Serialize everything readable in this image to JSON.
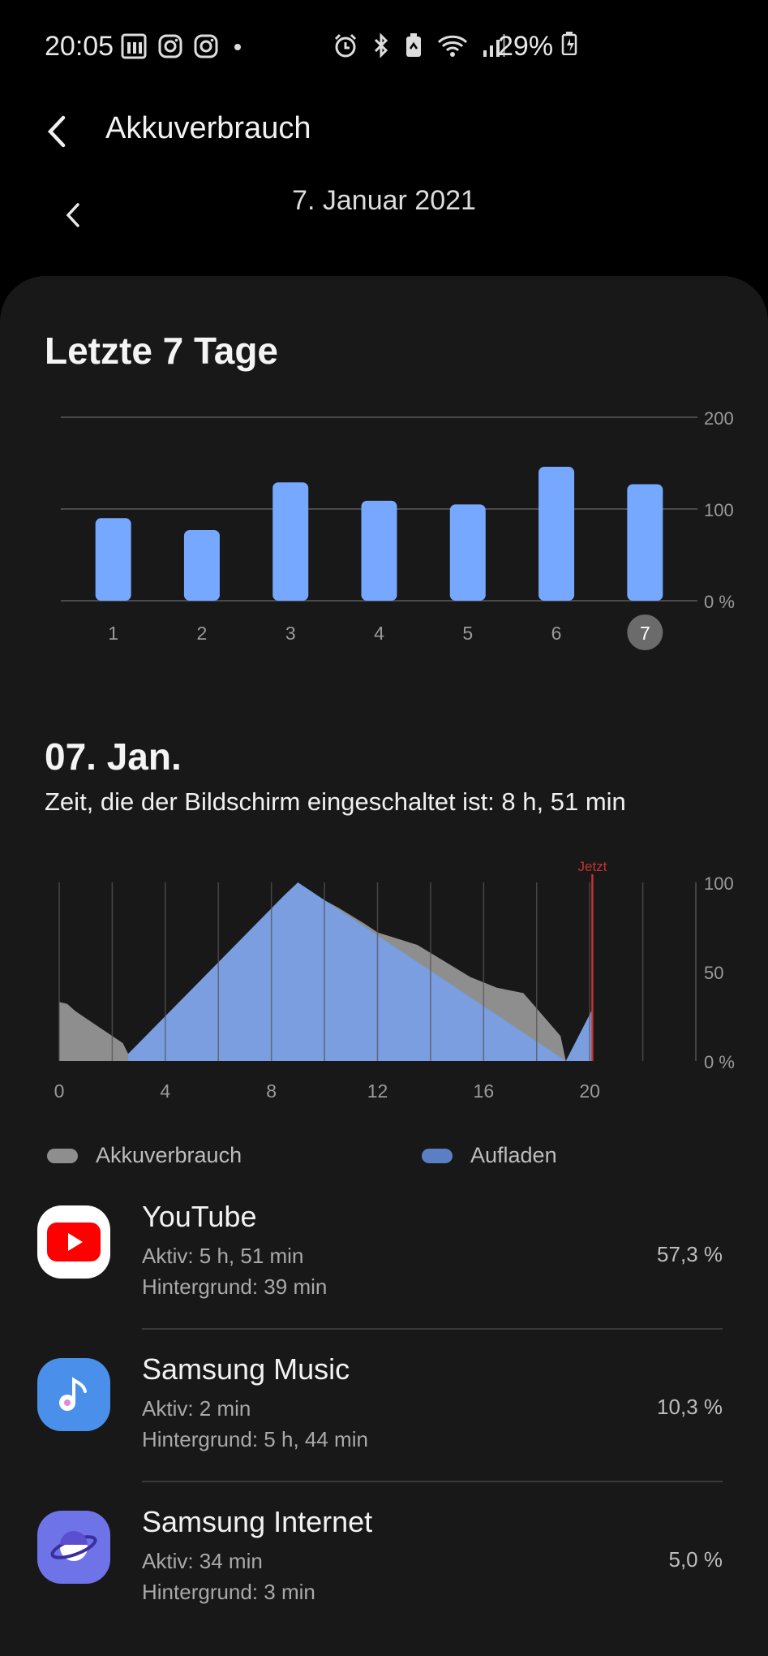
{
  "status_bar": {
    "time": "20:05",
    "battery_percent": "29%",
    "left_icons": [
      "sport-app-icon",
      "instagram-icon",
      "instagram-icon",
      "dot-icon"
    ],
    "right_icons": [
      "alarm-icon",
      "bluetooth-icon",
      "battery-saver-icon",
      "wifi-icon",
      "signal-icon",
      "battery-charging-icon"
    ]
  },
  "header": {
    "title": "Akkuverbrauch",
    "date_partial": "7. Januar 2021"
  },
  "weekly": {
    "heading": "Letzte 7 Tage",
    "selected_day": "7"
  },
  "daily": {
    "heading": "07. Jan.",
    "screen_time": "Zeit, die der Bildschirm eingeschaltet ist: 8 h, 51 min"
  },
  "legend": {
    "usage_label": "Akkuverbrauch",
    "charge_label": "Aufladen",
    "usage_color": "#8e8e8e",
    "charge_color": "#7a9ee0"
  },
  "apps": [
    {
      "name": "YouTube",
      "active": "Aktiv: 5 h, 51 min",
      "background": "Hintergrund: 39 min",
      "percent": "57,3 %",
      "icon": "youtube-icon"
    },
    {
      "name": "Samsung Music",
      "active": "Aktiv: 2 min",
      "background": "Hintergrund: 5 h, 44 min",
      "percent": "10,3 %",
      "icon": "samsung-music-icon"
    },
    {
      "name": "Samsung Internet",
      "active": "Aktiv: 34 min",
      "background": "Hintergrund: 3 min",
      "percent": "5,0 %",
      "icon": "samsung-internet-icon"
    }
  ],
  "chart_data": [
    {
      "type": "bar",
      "title": "Letzte 7 Tage",
      "categories": [
        "1",
        "2",
        "3",
        "4",
        "5",
        "6",
        "7"
      ],
      "values": [
        90,
        77,
        129,
        109,
        105,
        146,
        127
      ],
      "ylim": [
        0,
        200
      ],
      "yticks": [
        "200",
        "100",
        "0 %"
      ],
      "bar_color": "#76a8ff",
      "grid": true
    },
    {
      "type": "area",
      "xlim": [
        0,
        24
      ],
      "ylim": [
        0,
        100
      ],
      "xticks": [
        "0",
        "4",
        "8",
        "12",
        "16",
        "20"
      ],
      "yticks": [
        "100",
        "50",
        "0 %"
      ],
      "now_label": "Jetzt",
      "now_hour": 20.1,
      "series": [
        {
          "name": "Akkuverbrauch",
          "color": "#8e8e8e",
          "x": [
            0,
            0.3,
            0.6,
            1.0,
            1.5,
            2.0,
            2.4,
            2.6,
            9.0,
            9.5,
            10.5,
            11.5,
            12.0,
            13.5,
            14.5,
            15.5,
            16.5,
            17.5,
            18.2,
            18.9,
            19.1
          ],
          "values": [
            33,
            32,
            28,
            24,
            19,
            14,
            10,
            4,
            98,
            94,
            86,
            77,
            72,
            65,
            56,
            47,
            41,
            38,
            26,
            14,
            0
          ]
        },
        {
          "name": "Aufladen",
          "color": "#7a9ee0",
          "x": [
            2.6,
            8.5,
            9.0,
            19.1,
            20.1
          ],
          "values": [
            4,
            93,
            100,
            0,
            29
          ]
        }
      ],
      "grid": true
    }
  ]
}
